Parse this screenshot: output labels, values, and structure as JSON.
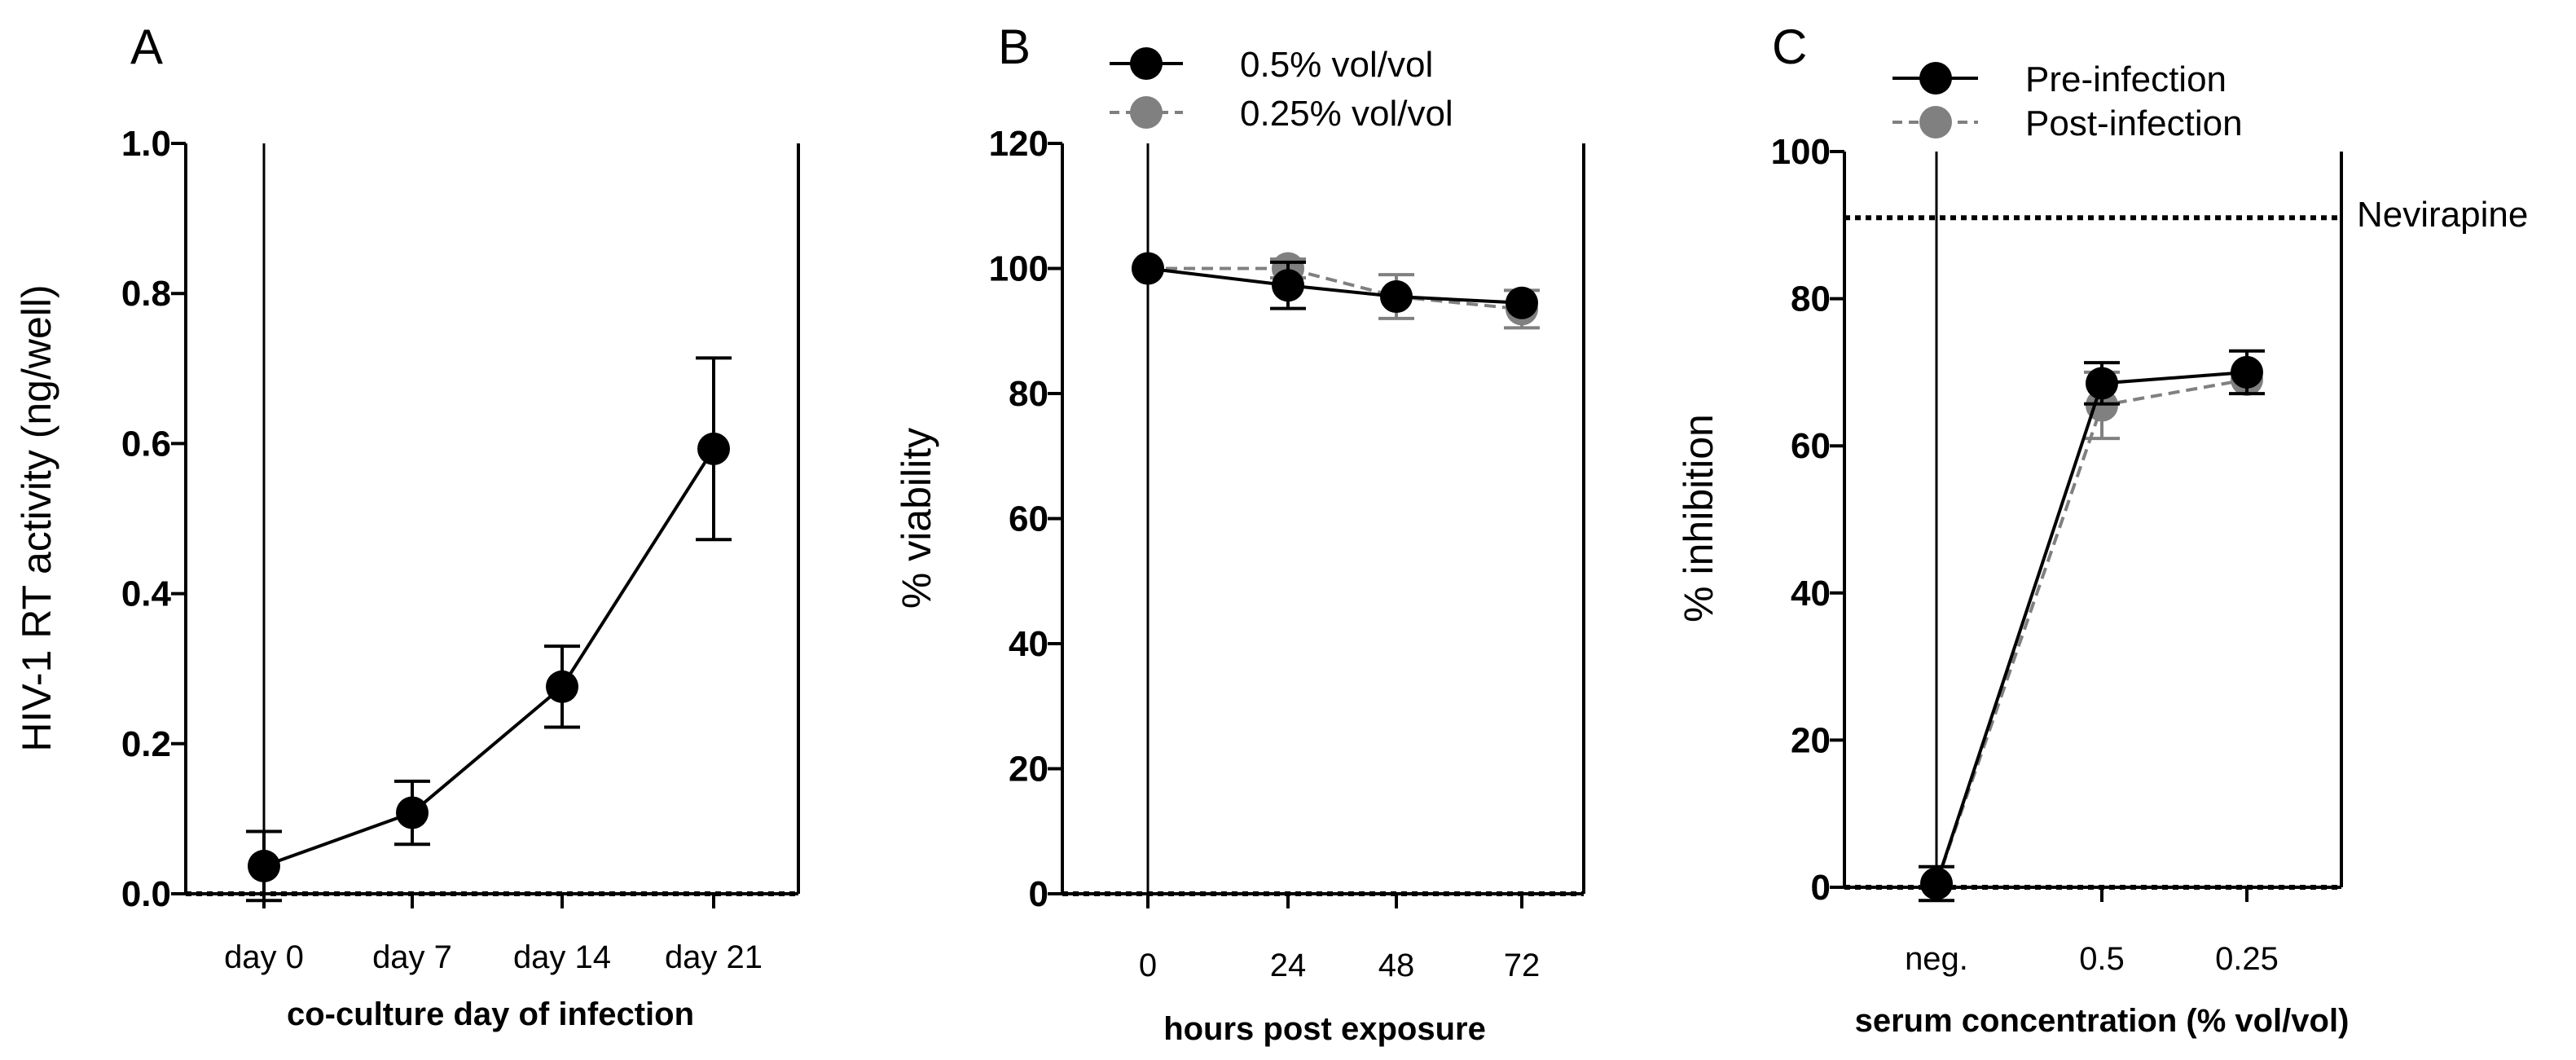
{
  "chart_data": [
    {
      "panel": "A",
      "type": "line",
      "ylabel": "HIV-1 RT activity (ng/well)",
      "xlabel": "co-culture day of infection",
      "categories": [
        "day 0",
        "day 7",
        "day 14",
        "day 21"
      ],
      "ylim": [
        0,
        1.0
      ],
      "yticks": [
        0.0,
        0.2,
        0.4,
        0.6,
        0.8,
        1.0
      ],
      "ytick_labels": [
        "0.0",
        "0.2",
        "0.4",
        "0.6",
        "0.8",
        "1.0"
      ],
      "reference_lines": [
        {
          "y": 0,
          "style": "dotted"
        }
      ],
      "series": [
        {
          "name": "RT activity",
          "color": "#000000",
          "dashed": false,
          "values": [
            0.037,
            0.108,
            0.276,
            0.593
          ],
          "errors": [
            0.046,
            0.042,
            0.054,
            0.121
          ]
        }
      ]
    },
    {
      "panel": "B",
      "type": "line",
      "ylabel": "% viability",
      "xlabel": "hours post exposure",
      "categories": [
        "0",
        "24",
        "48",
        "72"
      ],
      "ylim": [
        0,
        120
      ],
      "yticks": [
        0,
        20,
        40,
        60,
        80,
        100,
        120
      ],
      "ytick_labels": [
        "0",
        "20",
        "40",
        "60",
        "80",
        "100",
        "120"
      ],
      "reference_lines": [
        {
          "y": 0,
          "style": "dotted"
        }
      ],
      "legend": [
        "0.5% vol/vol",
        "0.25% vol/vol"
      ],
      "series": [
        {
          "name": "0.25% vol/vol",
          "color": "#808080",
          "dashed": true,
          "values": [
            100,
            100,
            95.5,
            93.5
          ],
          "errors": [
            0,
            1.5,
            3.5,
            3
          ]
        },
        {
          "name": "0.5% vol/vol",
          "color": "#000000",
          "dashed": false,
          "values": [
            100,
            97.3,
            95.5,
            94.5
          ],
          "errors": [
            0,
            3.7,
            0,
            0
          ]
        }
      ]
    },
    {
      "panel": "C",
      "type": "line",
      "ylabel": "% inhibition",
      "xlabel": "serum concentration (% vol/vol)",
      "categories": [
        "neg.",
        "0.5",
        "0.25"
      ],
      "ylim": [
        0,
        100
      ],
      "yticks": [
        0,
        20,
        40,
        60,
        80,
        100
      ],
      "ytick_labels": [
        "0",
        "20",
        "40",
        "60",
        "80",
        "100"
      ],
      "reference_lines": [
        {
          "y": 0,
          "style": "dotted"
        },
        {
          "y": 91,
          "style": "dotted",
          "label": "Nevirapine"
        }
      ],
      "legend": [
        "Pre-infection",
        "Post-infection"
      ],
      "series": [
        {
          "name": "Post-infection",
          "color": "#808080",
          "dashed": true,
          "values": [
            0.5,
            65.5,
            69
          ],
          "errors": [
            0,
            4.5,
            0
          ]
        },
        {
          "name": "Pre-infection",
          "color": "#000000",
          "dashed": false,
          "values": [
            0.5,
            68.5,
            70
          ],
          "errors": [
            2.3,
            2.8,
            2.9
          ]
        }
      ]
    }
  ]
}
